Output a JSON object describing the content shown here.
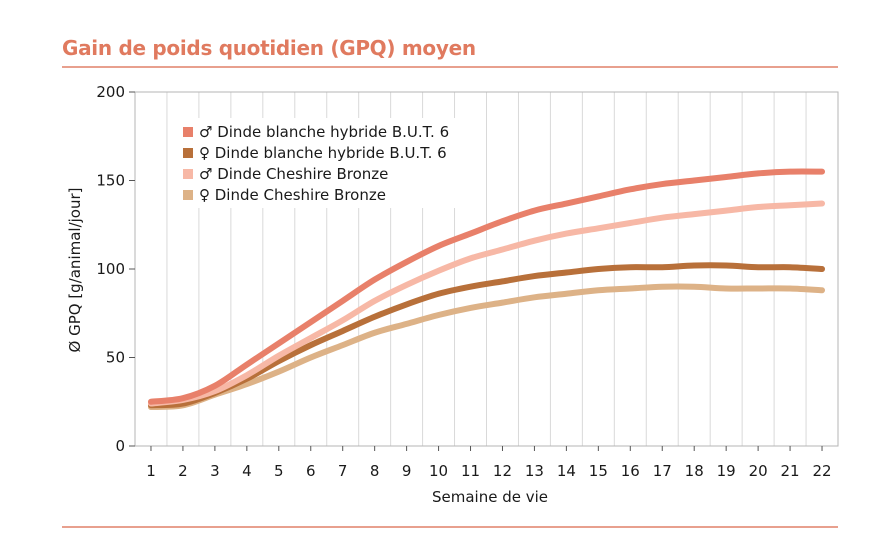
{
  "title": "Gain de poids quotidien (GPQ) moyen",
  "chart_data": {
    "type": "line",
    "title": "Gain de poids quotidien (GPQ) moyen",
    "xlabel": "Semaine de vie",
    "ylabel": "Ø GPQ [g/animal/jour]",
    "x": [
      1,
      2,
      3,
      4,
      5,
      6,
      7,
      8,
      9,
      10,
      11,
      12,
      13,
      14,
      15,
      16,
      17,
      18,
      19,
      20,
      21,
      22
    ],
    "xlim": [
      1,
      22
    ],
    "ylim": [
      0,
      200
    ],
    "yticks": [
      0,
      50,
      100,
      150,
      200
    ],
    "grid": "vertical",
    "legend": "top-left",
    "series": [
      {
        "name": "♂ Dinde blanche hybride B.U.T. 6",
        "color": "#e8806a",
        "values": [
          25,
          27,
          34,
          46,
          58,
          70,
          82,
          94,
          104,
          113,
          120,
          127,
          133,
          137,
          141,
          145,
          148,
          150,
          152,
          154,
          155,
          155
        ]
      },
      {
        "name": "♀ Dinde blanche hybride B.U.T. 6",
        "color": "#b8703a",
        "values": [
          23,
          24,
          30,
          38,
          48,
          57,
          65,
          73,
          80,
          86,
          90,
          93,
          96,
          98,
          100,
          101,
          101,
          102,
          102,
          101,
          101,
          100
        ]
      },
      {
        "name": "♂ Dinde Cheshire Bronze",
        "color": "#f7b8a6",
        "values": [
          24,
          26,
          31,
          40,
          51,
          61,
          71,
          82,
          91,
          99,
          106,
          111,
          116,
          120,
          123,
          126,
          129,
          131,
          133,
          135,
          136,
          137
        ]
      },
      {
        "name": "♀ Dinde Cheshire Bronze",
        "color": "#ddb287",
        "values": [
          22,
          23,
          29,
          35,
          42,
          50,
          57,
          64,
          69,
          74,
          78,
          81,
          84,
          86,
          88,
          89,
          90,
          90,
          89,
          89,
          89,
          88
        ]
      }
    ]
  }
}
